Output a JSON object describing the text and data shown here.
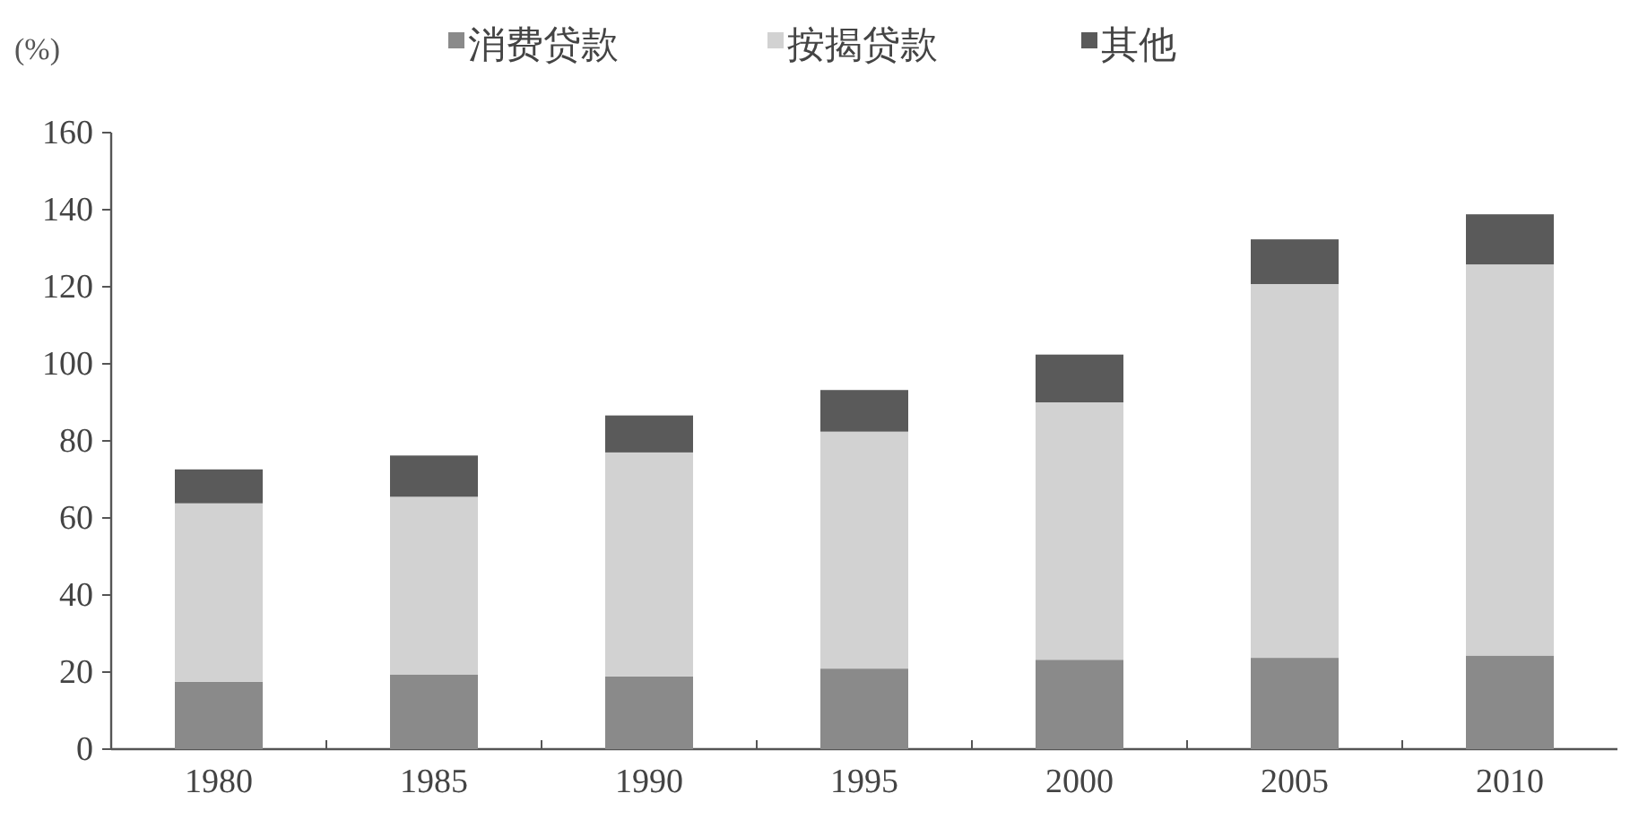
{
  "chart_data": {
    "type": "bar",
    "stacked": true,
    "ylabel": "(%)",
    "categories": [
      "1980",
      "1985",
      "1990",
      "1995",
      "2000",
      "2005",
      "2010"
    ],
    "series": [
      {
        "name": "消费贷款",
        "color": "#8a8a8a",
        "values": [
          17.5,
          19.4,
          18.9,
          20.9,
          23.2,
          23.7,
          24.3
        ]
      },
      {
        "name": "按揭贷款",
        "color": "#d2d2d2",
        "values": [
          46.3,
          46.1,
          58.1,
          61.5,
          66.8,
          97.0,
          101.5
        ]
      },
      {
        "name": "其他",
        "color": "#5a5a5a",
        "values": [
          8.8,
          10.7,
          9.6,
          10.8,
          12.4,
          11.6,
          13.0
        ]
      }
    ],
    "ylim": [
      0,
      160
    ],
    "yticks": [
      0,
      20,
      40,
      60,
      80,
      100,
      120,
      140,
      160
    ],
    "grid": false,
    "legend": "top"
  }
}
